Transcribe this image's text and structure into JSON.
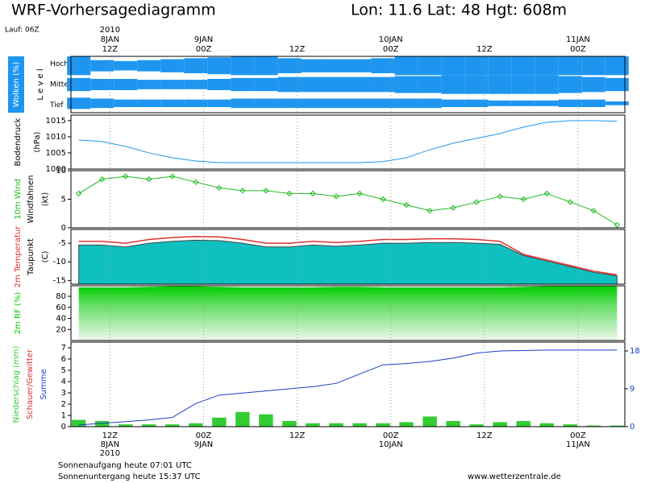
{
  "header": {
    "title": "WRF-Vorhersagediagramm",
    "location": "Lon: 11.6 Lat: 48 Hgt: 608m",
    "run": "Lauf: 06Z"
  },
  "time_axis": {
    "xlim": [
      7,
      78
    ],
    "xticks": [
      {
        "value": 12,
        "label": "12Z"
      },
      {
        "value": 24,
        "label": "00Z"
      },
      {
        "value": 36,
        "label": "12Z"
      },
      {
        "value": 48,
        "label": "00Z"
      },
      {
        "value": 60,
        "label": "12Z"
      },
      {
        "value": 72,
        "label": "00Z"
      }
    ],
    "dates": [
      {
        "value": 12,
        "label": "8JAN"
      },
      {
        "value": 24,
        "label": "9JAN"
      },
      {
        "value": 48,
        "label": "10JAN"
      },
      {
        "value": 72,
        "label": "11JAN"
      }
    ],
    "year": {
      "value": 12,
      "label": "2010"
    }
  },
  "chart_data": [
    {
      "type": "cloud",
      "ylabel": "Wolken (%)",
      "level_label": "L e v e l",
      "x": [
        8,
        11,
        14,
        17,
        20,
        23,
        26,
        29,
        32,
        35,
        38,
        41,
        44,
        47,
        50,
        53,
        56,
        59,
        62,
        65,
        68,
        71,
        74,
        77
      ],
      "series": [
        {
          "name": "Hoch",
          "color": "#1e96f0",
          "values": [
            100,
            60,
            50,
            60,
            70,
            80,
            90,
            100,
            100,
            80,
            70,
            70,
            70,
            80,
            100,
            100,
            100,
            100,
            100,
            100,
            100,
            100,
            100,
            100
          ]
        },
        {
          "name": "Mittel",
          "color": "#1e96f0",
          "values": [
            70,
            60,
            60,
            50,
            50,
            50,
            60,
            70,
            70,
            80,
            80,
            80,
            80,
            80,
            90,
            90,
            100,
            100,
            100,
            100,
            100,
            90,
            80,
            70
          ]
        },
        {
          "name": "Tief",
          "color": "#1e96f0",
          "values": [
            60,
            50,
            40,
            40,
            40,
            40,
            40,
            50,
            50,
            50,
            50,
            50,
            50,
            50,
            50,
            50,
            40,
            40,
            30,
            30,
            30,
            40,
            40,
            20
          ]
        }
      ]
    },
    {
      "type": "line",
      "ylabel": "Bodendruck",
      "unit": "(hPa)",
      "color": "#1e96f0",
      "x": [
        8,
        11,
        14,
        17,
        20,
        23,
        26,
        29,
        32,
        35,
        38,
        41,
        44,
        47,
        50,
        53,
        56,
        59,
        62,
        65,
        68,
        71,
        74,
        77
      ],
      "values": [
        1009,
        1008.5,
        1007,
        1005,
        1003.5,
        1002.5,
        1002,
        1002,
        1002,
        1002,
        1002,
        1002,
        1002,
        1002.3,
        1003.5,
        1006,
        1008,
        1009.5,
        1011,
        1013,
        1014.5,
        1015,
        1015,
        1014.8
      ],
      "ylim": [
        1000,
        1016.7
      ],
      "yticks": [
        1000,
        1005,
        1010,
        1015
      ]
    },
    {
      "type": "line",
      "ylabel2": "Windfahnen",
      "unit": "(kt)",
      "marker": "diamond",
      "series": [
        {
          "name": "10m Wind",
          "color": "#22bb22",
          "values": [
            6,
            8.5,
            9,
            8.5,
            9,
            8,
            7,
            6.5,
            6.5,
            6,
            6,
            5.5,
            6,
            5,
            4,
            3,
            3.5,
            4.5,
            5.5,
            5,
            6,
            4.5,
            3,
            0.5
          ]
        }
      ],
      "x": [
        8,
        11,
        14,
        17,
        20,
        23,
        26,
        29,
        32,
        35,
        38,
        41,
        44,
        47,
        50,
        53,
        56,
        59,
        62,
        65,
        68,
        71,
        74,
        77
      ],
      "ylim": [
        0,
        10
      ],
      "yticks": [
        0,
        5,
        10
      ]
    },
    {
      "type": "area",
      "unit": "(C)",
      "x": [
        8,
        11,
        14,
        17,
        20,
        23,
        26,
        29,
        32,
        35,
        38,
        41,
        44,
        47,
        50,
        53,
        56,
        59,
        62,
        65,
        68,
        71,
        74,
        77
      ],
      "series": [
        {
          "name": "2m Temperatur",
          "color": "#e03030",
          "values": [
            -4.5,
            -4.5,
            -5,
            -4,
            -3.5,
            -3.2,
            -3.3,
            -4,
            -5,
            -5,
            -4.5,
            -4.8,
            -4.5,
            -4,
            -4,
            -3.8,
            -3.8,
            -4,
            -4.5,
            -8,
            -9.5,
            -11,
            -12.5,
            -13.5
          ]
        },
        {
          "name": "Taupunkt",
          "color": "#10c0c0",
          "values": [
            -5.5,
            -5.5,
            -6,
            -5,
            -4.5,
            -4.2,
            -4.3,
            -5,
            -6,
            -6,
            -5.5,
            -5.8,
            -5.5,
            -5,
            -5,
            -4.8,
            -4.8,
            -5,
            -5.3,
            -8.3,
            -9.8,
            -11.3,
            -12.8,
            -13.8
          ]
        }
      ],
      "ylim": [
        -16,
        -1.3
      ],
      "yticks": [
        -15,
        -10,
        -5
      ]
    },
    {
      "type": "area",
      "x": [
        8,
        11,
        14,
        17,
        20,
        23,
        26,
        29,
        32,
        35,
        38,
        41,
        44,
        47,
        50,
        53,
        56,
        59,
        62,
        65,
        68,
        71,
        74,
        77
      ],
      "series": [
        {
          "name": "2m RF (%)",
          "color": "#00cc00",
          "values": [
            96,
            96,
            96,
            97,
            98,
            98,
            97,
            96,
            96,
            96,
            96,
            97,
            97,
            96,
            96,
            96,
            96,
            96,
            96,
            97,
            98,
            98,
            98,
            98
          ]
        }
      ],
      "ylim": [
        0,
        99
      ],
      "yticks": [
        20,
        40,
        60,
        80
      ]
    },
    {
      "type": "bar_line",
      "ylabel2": "Schauer/Gewitter",
      "x": [
        8,
        11,
        14,
        17,
        20,
        23,
        26,
        29,
        32,
        35,
        38,
        41,
        44,
        47,
        50,
        53,
        56,
        59,
        62,
        65,
        68,
        71,
        74,
        77
      ],
      "series": [
        {
          "name": "Niederschlag (mm)",
          "color": "#33cc33",
          "values": [
            0.6,
            0.5,
            0.2,
            0.2,
            0.2,
            0.3,
            0.8,
            1.3,
            1.1,
            0.5,
            0.3,
            0.3,
            0.3,
            0.3,
            0.4,
            0.9,
            0.5,
            0.2,
            0.4,
            0.5,
            0.3,
            0.2,
            0.1,
            0.1
          ]
        },
        {
          "name": "Summe",
          "color": "#1a3cc8",
          "axis": "y2",
          "values": [
            0.4,
            0.8,
            1.2,
            1.6,
            2.2,
            5.5,
            7.5,
            8,
            8.5,
            9,
            9.5,
            10.3,
            12.5,
            14.7,
            15,
            15.5,
            16.3,
            17.5,
            18,
            18.1,
            18.2,
            18.2,
            18.2,
            18.2
          ]
        }
      ],
      "ylim": [
        0,
        7.5
      ],
      "yticks": [
        0,
        1,
        2,
        3,
        4,
        5,
        6,
        7
      ],
      "y2lim": [
        0,
        20.1
      ],
      "y2ticks": [
        0,
        9,
        18
      ]
    }
  ],
  "footer": {
    "sunrise": "Sonnenaufgang heute 07:01 UTC",
    "sunset": "Sonnenuntergang heute 15:37 UTC",
    "source": "www.wetterzentrale.de"
  }
}
